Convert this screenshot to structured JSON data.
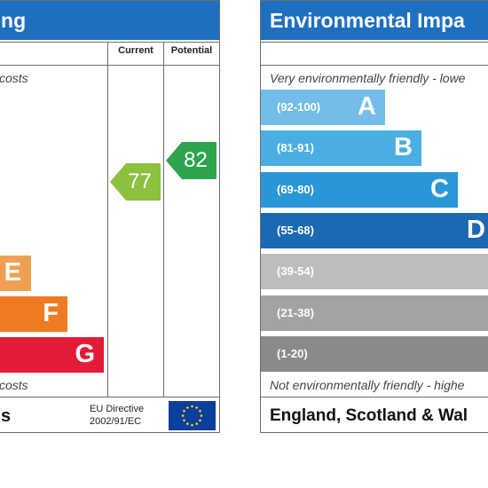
{
  "left_panel": {
    "title": "ting",
    "columns": {
      "current": "Current",
      "potential": "Potential"
    },
    "top_note": "costs",
    "bottom_note": "costs",
    "footer": "s",
    "eu_directive": {
      "line1": "EU Directive",
      "line2": "2002/91/EC"
    },
    "current_value": "77",
    "potential_value": "82",
    "current_color": "#8cc03f",
    "potential_color": "#2ea44f"
  },
  "right_panel": {
    "title": "Environmental Impa",
    "top_note": "Very environmentally friendly - lowe",
    "bottom_note": "Not environmentally friendly - highe",
    "footer": "England, Scotland & Wal"
  },
  "chart_data": [
    {
      "type": "bar",
      "title": "",
      "note": "Energy efficiency rating bands (partially visible)",
      "categories": [
        "E",
        "F",
        "G"
      ],
      "colors": [
        "#f0a052",
        "#ee7b22",
        "#e31b38"
      ],
      "current": 77,
      "potential": 82
    },
    {
      "type": "bar",
      "title": "Environmental Impa",
      "categories": [
        "(92-100)",
        "(81-91)",
        "(69-80)",
        "(55-68)",
        "(39-54)",
        "(21-38)",
        "(1-20)"
      ],
      "letters": [
        "A",
        "B",
        "C",
        "D",
        "",
        "",
        ""
      ],
      "colors": [
        "#73bde8",
        "#4aaee3",
        "#2996d8",
        "#1b68b3",
        "#bdbdbd",
        "#a3a3a3",
        "#8a8a8a"
      ]
    }
  ]
}
